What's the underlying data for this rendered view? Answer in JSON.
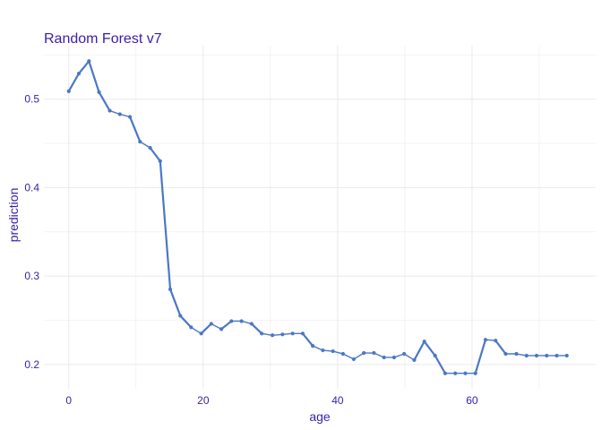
{
  "chart_data": {
    "type": "line",
    "title": "Random Forest v7",
    "xlabel": "age",
    "ylabel": "prediction",
    "xlim": [
      -3.7,
      78.4
    ],
    "ylim": [
      0.1725,
      0.5605
    ],
    "xticks": [
      0,
      20,
      40,
      60
    ],
    "yticks": [
      0.2,
      0.3,
      0.4,
      0.5
    ],
    "grid": true,
    "colors": {
      "line": "#4a78c4",
      "point": "#4a78c4",
      "text": "#3a1ea8",
      "grid": "#ebebeb"
    },
    "x": [
      0.0,
      1.5,
      3.0,
      4.5,
      6.1,
      7.6,
      9.1,
      10.6,
      12.1,
      13.6,
      15.1,
      16.6,
      18.2,
      19.7,
      21.2,
      22.7,
      24.2,
      25.7,
      27.2,
      28.7,
      30.3,
      31.8,
      33.3,
      34.8,
      36.3,
      37.8,
      39.3,
      40.8,
      42.4,
      43.9,
      45.4,
      46.9,
      48.4,
      49.9,
      51.4,
      52.9,
      54.5,
      56.0,
      57.5,
      59.0,
      60.5,
      62.0,
      63.5,
      65.0,
      66.6,
      68.1,
      69.6,
      71.1,
      72.6,
      74.1
    ],
    "y": [
      0.509,
      0.529,
      0.543,
      0.508,
      0.487,
      0.483,
      0.48,
      0.452,
      0.445,
      0.43,
      0.285,
      0.255,
      0.242,
      0.235,
      0.246,
      0.24,
      0.249,
      0.249,
      0.246,
      0.235,
      0.233,
      0.234,
      0.235,
      0.235,
      0.221,
      0.216,
      0.215,
      0.212,
      0.206,
      0.213,
      0.213,
      0.208,
      0.208,
      0.212,
      0.205,
      0.226,
      0.21,
      0.19,
      0.19,
      0.19,
      0.19,
      0.228,
      0.227,
      0.212,
      0.212,
      0.21,
      0.21,
      0.21,
      0.21,
      0.21
    ]
  }
}
